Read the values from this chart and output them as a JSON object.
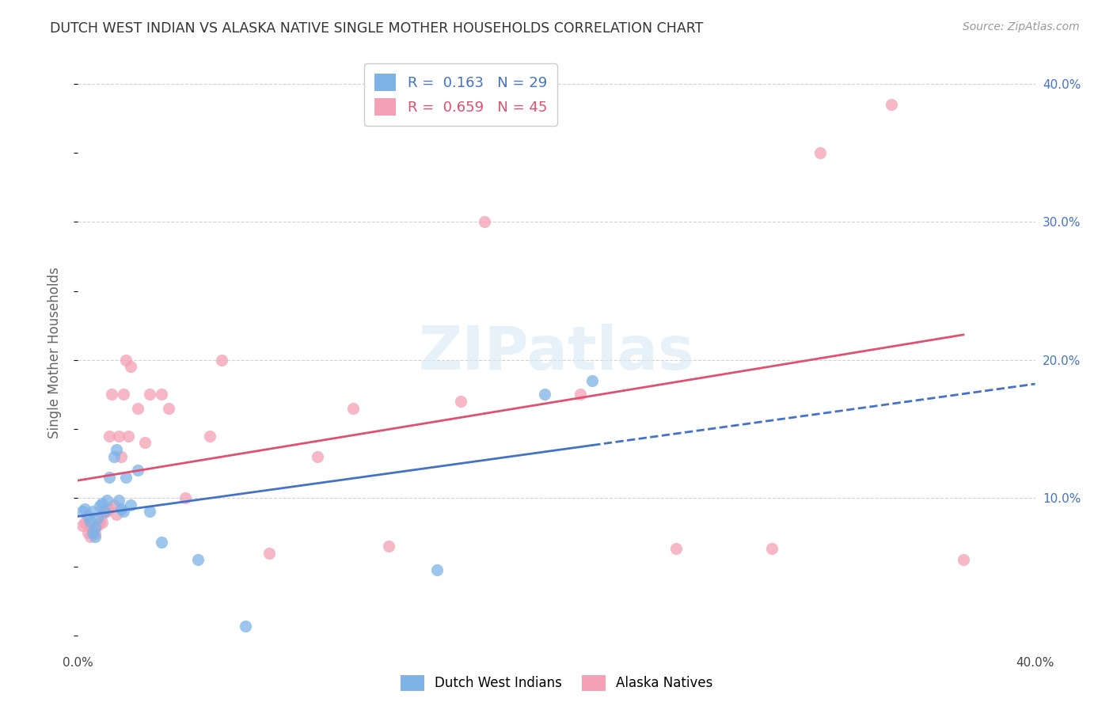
{
  "title": "DUTCH WEST INDIAN VS ALASKA NATIVE SINGLE MOTHER HOUSEHOLDS CORRELATION CHART",
  "source": "Source: ZipAtlas.com",
  "ylabel": "Single Mother Households",
  "xlabel": "",
  "xlim": [
    0.0,
    0.4
  ],
  "ylim": [
    -0.01,
    0.42
  ],
  "xticks": [
    0.0,
    0.05,
    0.1,
    0.15,
    0.2,
    0.25,
    0.3,
    0.35,
    0.4
  ],
  "yticks": [
    0.0,
    0.05,
    0.1,
    0.15,
    0.2,
    0.25,
    0.3,
    0.35,
    0.4
  ],
  "dutch_color": "#7EB3E8",
  "alaska_color": "#F4A0B5",
  "dutch_line_color": "#4472C4",
  "alaska_line_color": "#E05070",
  "R_dutch": 0.163,
  "N_dutch": 29,
  "R_alaska": 0.659,
  "N_alaska": 45,
  "dutch_scatter_x": [
    0.002,
    0.003,
    0.004,
    0.005,
    0.006,
    0.006,
    0.007,
    0.007,
    0.008,
    0.009,
    0.01,
    0.011,
    0.012,
    0.013,
    0.015,
    0.016,
    0.017,
    0.018,
    0.019,
    0.02,
    0.022,
    0.025,
    0.03,
    0.035,
    0.05,
    0.07,
    0.15,
    0.195,
    0.215
  ],
  "dutch_scatter_y": [
    0.09,
    0.092,
    0.087,
    0.083,
    0.09,
    0.075,
    0.072,
    0.079,
    0.085,
    0.094,
    0.096,
    0.09,
    0.098,
    0.115,
    0.13,
    0.135,
    0.098,
    0.092,
    0.09,
    0.115,
    0.095,
    0.12,
    0.09,
    0.068,
    0.055,
    0.007,
    0.048,
    0.175,
    0.185
  ],
  "alaska_scatter_x": [
    0.002,
    0.003,
    0.004,
    0.005,
    0.005,
    0.006,
    0.007,
    0.007,
    0.008,
    0.009,
    0.01,
    0.01,
    0.011,
    0.012,
    0.013,
    0.013,
    0.014,
    0.015,
    0.016,
    0.017,
    0.018,
    0.019,
    0.02,
    0.021,
    0.022,
    0.025,
    0.028,
    0.03,
    0.035,
    0.038,
    0.045,
    0.055,
    0.06,
    0.08,
    0.1,
    0.115,
    0.13,
    0.16,
    0.17,
    0.21,
    0.25,
    0.29,
    0.31,
    0.34,
    0.37
  ],
  "alaska_scatter_y": [
    0.08,
    0.082,
    0.075,
    0.072,
    0.079,
    0.076,
    0.074,
    0.078,
    0.08,
    0.082,
    0.082,
    0.088,
    0.09,
    0.09,
    0.092,
    0.145,
    0.175,
    0.095,
    0.088,
    0.145,
    0.13,
    0.175,
    0.2,
    0.145,
    0.195,
    0.165,
    0.14,
    0.175,
    0.175,
    0.165,
    0.1,
    0.145,
    0.2,
    0.06,
    0.13,
    0.165,
    0.065,
    0.17,
    0.3,
    0.175,
    0.063,
    0.063,
    0.35,
    0.385,
    0.055
  ],
  "background_color": "#FFFFFF",
  "grid_color": "#CCCCCC",
  "watermark_text": "ZIPatlas",
  "watermark_color": "#D8E8F5"
}
